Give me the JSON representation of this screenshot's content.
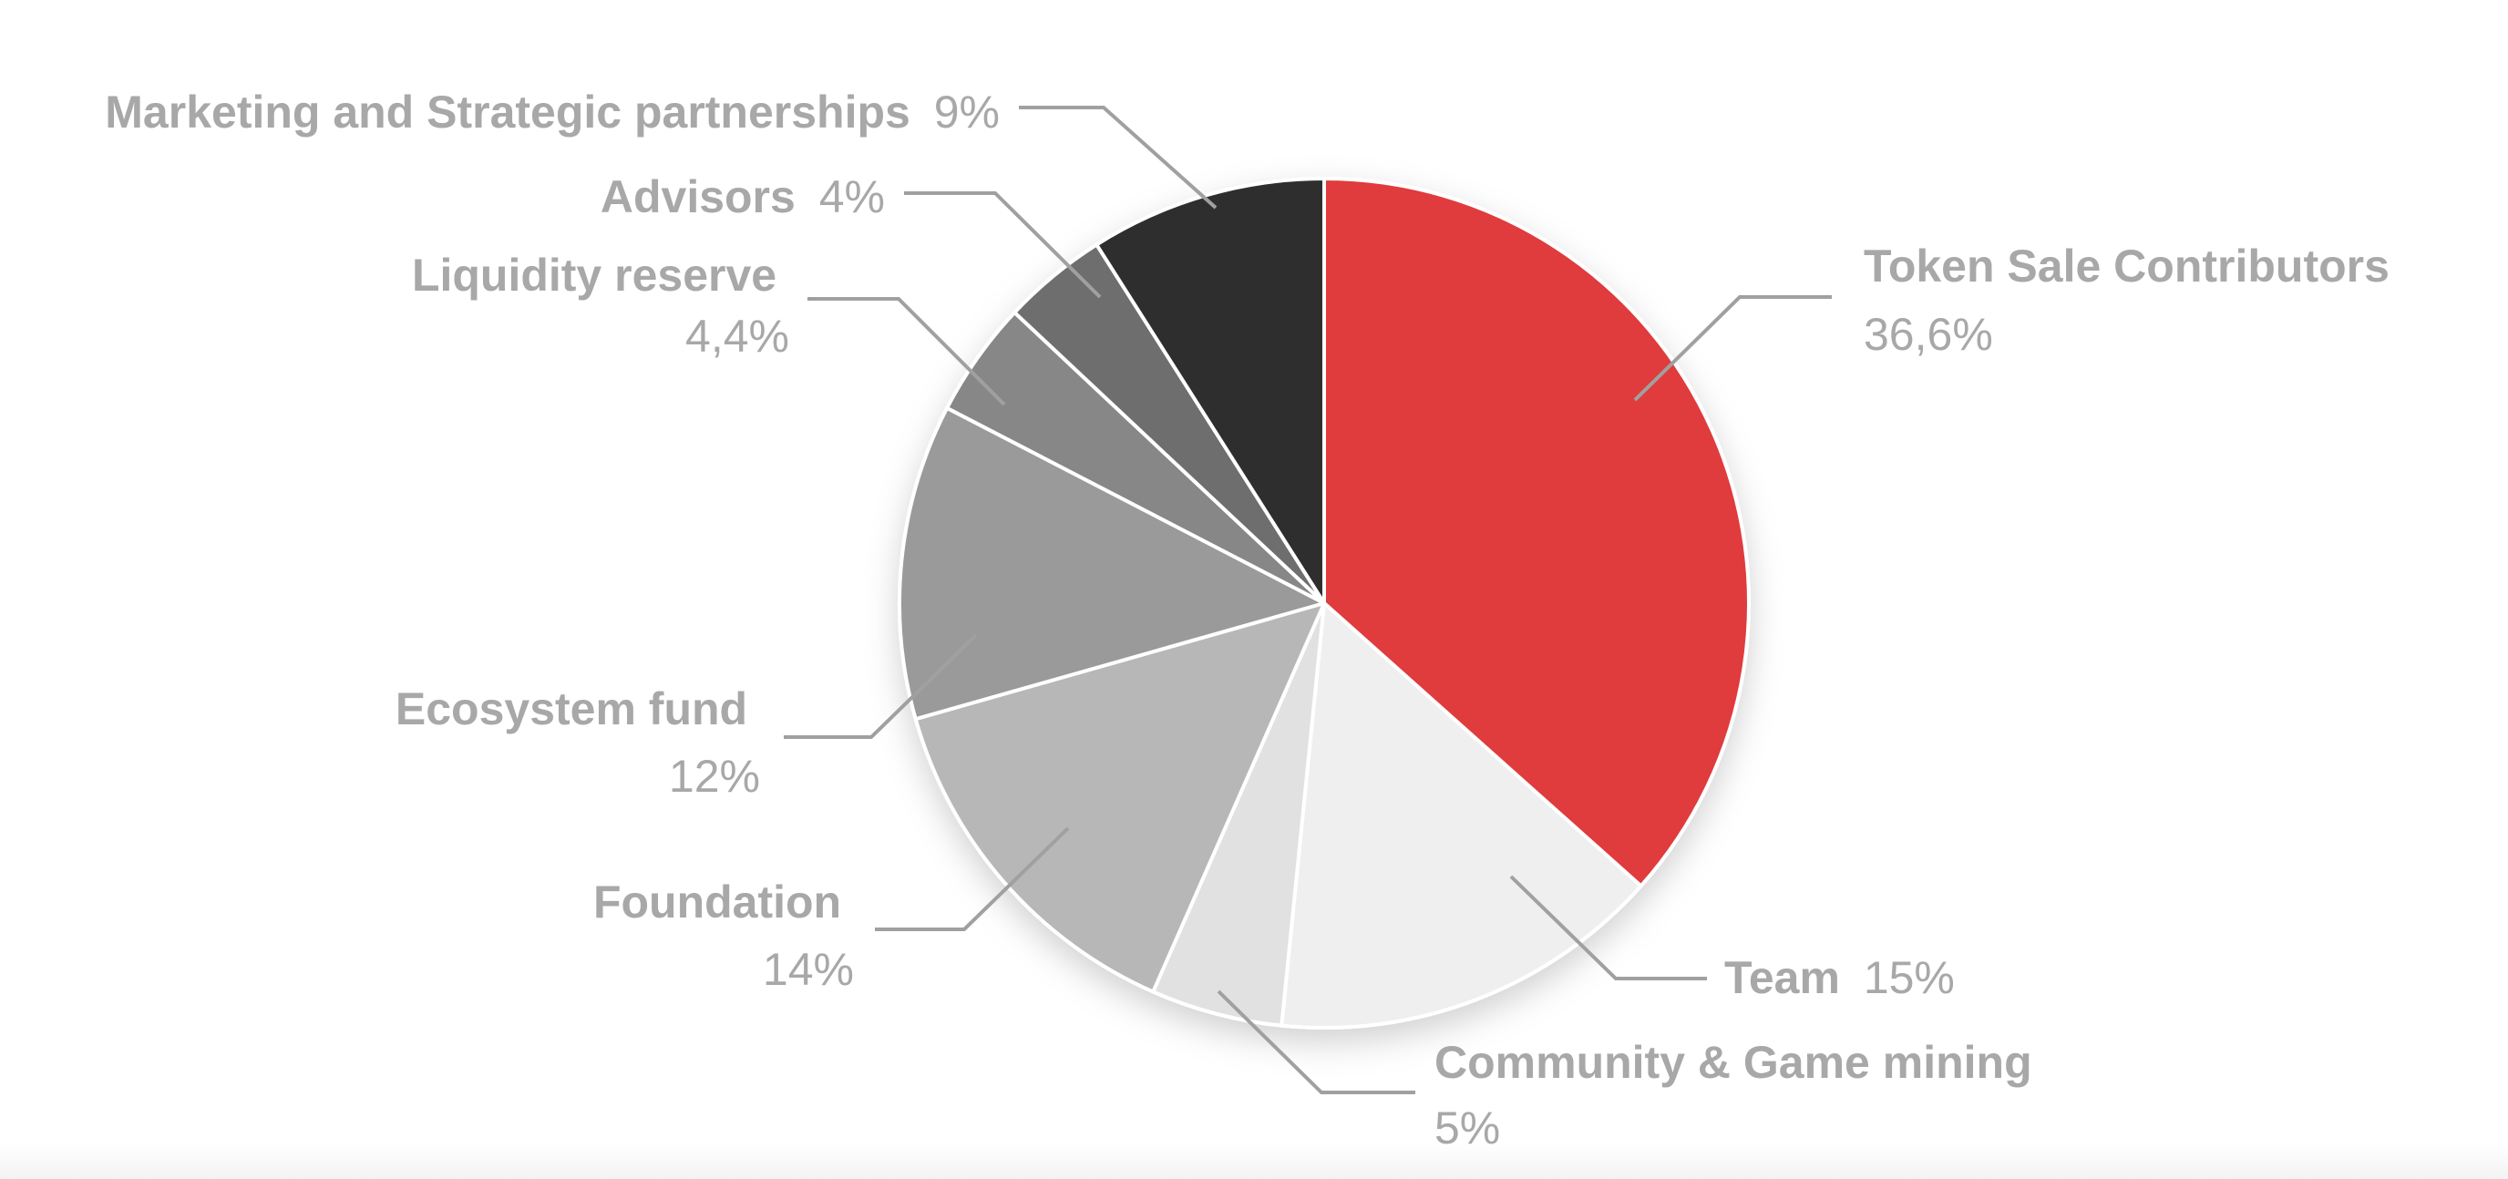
{
  "chart_data": {
    "type": "pie",
    "title": "",
    "start": "top",
    "direction": "clockwise",
    "slices": [
      {
        "name": "Token Sale Contributors",
        "value": 36.6,
        "label_value": "36,6%",
        "color": "#e03a3e"
      },
      {
        "name": "Team",
        "value": 15,
        "label_value": "15%",
        "color": "#efefef"
      },
      {
        "name": "Community & Game mining",
        "value": 5,
        "label_value": "5%",
        "color": "#e1e1e1"
      },
      {
        "name": "Foundation",
        "value": 14,
        "label_value": "14%",
        "color": "#b7b7b7"
      },
      {
        "name": "Ecosystem fund",
        "value": 12,
        "label_value": "12%",
        "color": "#9a9a9a"
      },
      {
        "name": "Liquidity reserve",
        "value": 4.4,
        "label_value": "4,4%",
        "color": "#878787"
      },
      {
        "name": "Advisors",
        "value": 4,
        "label_value": "4%",
        "color": "#6e6e6e"
      },
      {
        "name": "Marketing and Strategic partnerships",
        "value": 9,
        "label_value": "9%",
        "color": "#2e2e2e"
      }
    ]
  }
}
